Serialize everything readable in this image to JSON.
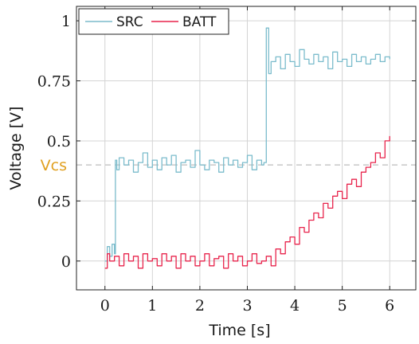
{
  "chart_data": {
    "type": "line",
    "xlabel": "Time [s]",
    "ylabel": "Voltage [V]",
    "xlim": [
      -0.6,
      6.55
    ],
    "ylim": [
      -0.12,
      1.06
    ],
    "x_ticks": [
      0,
      1,
      2,
      3,
      4,
      5,
      6
    ],
    "x_tick_labels": [
      "0",
      "1",
      "2",
      "3",
      "4",
      "5",
      "6"
    ],
    "y_ticks": [
      0,
      0.25,
      0.5,
      0.75,
      1
    ],
    "y_tick_labels": [
      "0",
      "0.25",
      "0.5",
      "0.75",
      "1"
    ],
    "grid": true,
    "legend_position": "top-left",
    "reference_line": {
      "label": "Vcs",
      "y": 0.4,
      "color": "#e0a020"
    },
    "series": [
      {
        "name": "SRC",
        "color": "#7bbccc",
        "x": [
          0,
          0.05,
          0.1,
          0.15,
          0.2,
          0.22,
          0.25,
          0.3,
          0.4,
          0.5,
          0.6,
          0.7,
          0.8,
          0.9,
          1.0,
          1.1,
          1.2,
          1.3,
          1.4,
          1.5,
          1.6,
          1.7,
          1.8,
          1.9,
          2.0,
          2.1,
          2.2,
          2.3,
          2.4,
          2.5,
          2.6,
          2.7,
          2.8,
          2.9,
          3.0,
          3.1,
          3.2,
          3.3,
          3.35,
          3.4,
          3.45,
          3.5,
          3.6,
          3.7,
          3.8,
          3.9,
          4.0,
          4.1,
          4.2,
          4.3,
          4.4,
          4.5,
          4.6,
          4.7,
          4.8,
          4.9,
          5.0,
          5.1,
          5.2,
          5.3,
          5.4,
          5.5,
          5.6,
          5.7,
          5.8,
          5.9,
          6.0
        ],
        "y": [
          0.0,
          0.06,
          0.02,
          0.07,
          0.03,
          0.42,
          0.38,
          0.43,
          0.4,
          0.42,
          0.37,
          0.41,
          0.45,
          0.39,
          0.42,
          0.38,
          0.43,
          0.4,
          0.44,
          0.37,
          0.41,
          0.42,
          0.39,
          0.46,
          0.4,
          0.38,
          0.42,
          0.41,
          0.37,
          0.43,
          0.4,
          0.42,
          0.39,
          0.41,
          0.44,
          0.38,
          0.42,
          0.4,
          0.41,
          0.97,
          0.78,
          0.83,
          0.85,
          0.8,
          0.86,
          0.83,
          0.81,
          0.88,
          0.84,
          0.82,
          0.86,
          0.83,
          0.85,
          0.8,
          0.87,
          0.83,
          0.84,
          0.81,
          0.86,
          0.83,
          0.85,
          0.82,
          0.84,
          0.86,
          0.83,
          0.85,
          0.84
        ]
      },
      {
        "name": "BATT",
        "color": "#e8244c",
        "x": [
          0,
          0.05,
          0.1,
          0.2,
          0.3,
          0.4,
          0.5,
          0.6,
          0.7,
          0.8,
          0.9,
          1.0,
          1.1,
          1.2,
          1.3,
          1.4,
          1.5,
          1.6,
          1.7,
          1.8,
          1.9,
          2.0,
          2.1,
          2.2,
          2.3,
          2.4,
          2.5,
          2.6,
          2.7,
          2.8,
          2.9,
          3.0,
          3.1,
          3.2,
          3.3,
          3.4,
          3.5,
          3.6,
          3.7,
          3.8,
          3.9,
          4.0,
          4.1,
          4.2,
          4.3,
          4.4,
          4.5,
          4.6,
          4.7,
          4.8,
          4.9,
          5.0,
          5.1,
          5.2,
          5.3,
          5.4,
          5.5,
          5.6,
          5.7,
          5.8,
          5.9,
          6.0
        ],
        "y": [
          -0.03,
          0.03,
          0.0,
          0.02,
          -0.02,
          0.03,
          0.0,
          0.02,
          -0.03,
          0.03,
          0.0,
          0.01,
          -0.02,
          0.03,
          0.0,
          0.02,
          -0.03,
          0.03,
          0.0,
          0.02,
          -0.02,
          0.0,
          0.03,
          -0.02,
          0.01,
          0.02,
          -0.03,
          0.03,
          0.0,
          0.02,
          -0.02,
          0.0,
          0.03,
          -0.01,
          0.0,
          0.02,
          -0.02,
          0.05,
          0.03,
          0.08,
          0.1,
          0.07,
          0.14,
          0.12,
          0.17,
          0.2,
          0.18,
          0.24,
          0.22,
          0.27,
          0.29,
          0.26,
          0.32,
          0.34,
          0.31,
          0.37,
          0.39,
          0.41,
          0.45,
          0.43,
          0.5,
          0.52
        ]
      }
    ]
  }
}
